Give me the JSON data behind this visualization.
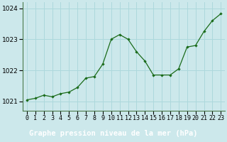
{
  "x": [
    0,
    1,
    2,
    3,
    4,
    5,
    6,
    7,
    8,
    9,
    10,
    11,
    12,
    13,
    14,
    15,
    16,
    17,
    18,
    19,
    20,
    21,
    22,
    23
  ],
  "y": [
    1021.05,
    1021.1,
    1021.2,
    1021.15,
    1021.25,
    1021.3,
    1021.45,
    1021.75,
    1021.8,
    1022.2,
    1023.0,
    1023.15,
    1023.0,
    1022.6,
    1022.3,
    1021.85,
    1021.85,
    1021.85,
    1022.05,
    1022.75,
    1022.8,
    1023.25,
    1023.6,
    1023.82
  ],
  "line_color": "#1a6b1a",
  "marker_color": "#1a6b1a",
  "bg_color": "#cce8eb",
  "grid_color": "#add8dc",
  "xlabel": "Graphe pression niveau de la mer (hPa)",
  "xlabel_color": "#003300",
  "xlabel_bg": "#3a7a3a",
  "ylabel_ticks": [
    1021,
    1022,
    1023,
    1024
  ],
  "ylim": [
    1020.7,
    1024.2
  ],
  "xlim": [
    -0.5,
    23.5
  ],
  "tick_fontsize": 6.5,
  "xlabel_fontsize": 7.5
}
